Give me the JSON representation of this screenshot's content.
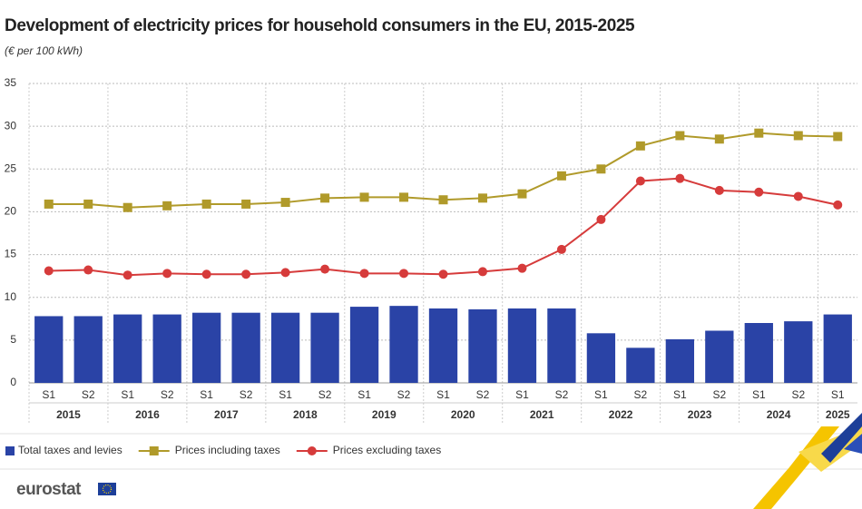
{
  "chart_data": {
    "type": "bar",
    "title": "Development of electricity prices for household consumers in the EU, 2015-2025",
    "subtitle": "(€ per 100 kWh)",
    "categories": [
      "S1",
      "S2",
      "S1",
      "S2",
      "S1",
      "S2",
      "S1",
      "S2",
      "S1",
      "S2",
      "S1",
      "S2",
      "S1",
      "S2",
      "S1",
      "S2",
      "S1",
      "S2",
      "S1",
      "S2",
      "S1"
    ],
    "groups": [
      {
        "name": "2015",
        "size": 2
      },
      {
        "name": "2016",
        "size": 2
      },
      {
        "name": "2017",
        "size": 2
      },
      {
        "name": "2018",
        "size": 2
      },
      {
        "name": "2019",
        "size": 2
      },
      {
        "name": "2020",
        "size": 2
      },
      {
        "name": "2021",
        "size": 2
      },
      {
        "name": "2022",
        "size": 2
      },
      {
        "name": "2023",
        "size": 2
      },
      {
        "name": "2024",
        "size": 2
      },
      {
        "name": "2025",
        "size": 1
      }
    ],
    "series": [
      {
        "name": "Total taxes and levies",
        "type": "bar",
        "color": "#2a43a6",
        "values": [
          7.8,
          7.8,
          8.0,
          8.0,
          8.2,
          8.2,
          8.2,
          8.2,
          8.9,
          9.0,
          8.7,
          8.6,
          8.7,
          8.7,
          5.8,
          4.1,
          5.1,
          6.1,
          7.0,
          7.2,
          8.0
        ]
      },
      {
        "name": "Prices including taxes",
        "type": "line",
        "marker": "square",
        "color": "#b09a2a",
        "values": [
          20.9,
          20.9,
          20.5,
          20.7,
          20.9,
          20.9,
          21.1,
          21.6,
          21.7,
          21.7,
          21.4,
          21.6,
          22.1,
          24.2,
          25.0,
          27.7,
          28.9,
          28.5,
          29.2,
          28.9,
          28.8
        ]
      },
      {
        "name": "Prices excluding taxes",
        "type": "line",
        "marker": "circle",
        "color": "#d63b3b",
        "values": [
          13.1,
          13.2,
          12.6,
          12.8,
          12.7,
          12.7,
          12.9,
          13.3,
          12.8,
          12.8,
          12.7,
          13.0,
          13.4,
          15.6,
          19.1,
          23.6,
          23.9,
          22.5,
          22.3,
          21.8,
          20.8
        ]
      }
    ],
    "ylim": [
      0,
      35
    ],
    "yticks": [
      0,
      5,
      10,
      15,
      20,
      25,
      30,
      35
    ],
    "grid": true
  },
  "logo": "eurostat"
}
